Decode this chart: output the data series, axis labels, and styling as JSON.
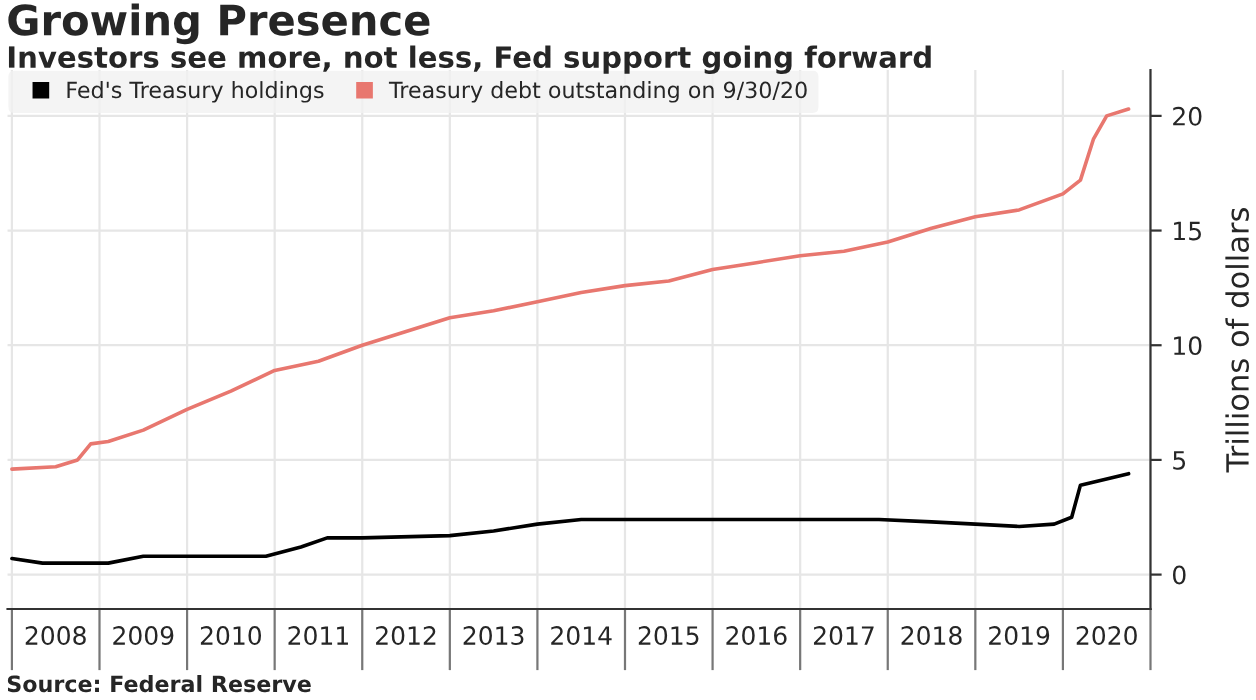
{
  "chart_data": {
    "type": "line",
    "title": "Growing Presence",
    "subtitle": "Investors see more, not less, Fed support going forward",
    "ylabel": "Trillions of dollars",
    "annotations": [
      "Source: Federal Reserve"
    ],
    "series": [
      {
        "name": "Fed's Treasury holdings",
        "color": "#000000",
        "x": [
          2008.0,
          2008.35,
          2009.1,
          2009.5,
          2010.0,
          2010.9,
          2011.3,
          2011.6,
          2012.0,
          2013.0,
          2013.5,
          2014.0,
          2014.5,
          2017.9,
          2018.5,
          2019.0,
          2019.5,
          2019.9,
          2020.1,
          2020.2,
          2020.75
        ],
        "values": [
          0.7,
          0.5,
          0.5,
          0.8,
          0.8,
          0.8,
          1.2,
          1.6,
          1.6,
          1.7,
          1.9,
          2.2,
          2.4,
          2.4,
          2.3,
          2.2,
          2.1,
          2.2,
          2.5,
          3.9,
          4.4
        ]
      },
      {
        "name": "Treasury debt outstanding on 9/30/20",
        "color": "#e8776f",
        "x": [
          2008.0,
          2008.5,
          2008.75,
          2008.9,
          2009.1,
          2009.5,
          2010.0,
          2010.5,
          2011.0,
          2011.5,
          2012.0,
          2012.5,
          2013.0,
          2013.5,
          2014.0,
          2014.5,
          2015.0,
          2015.5,
          2016.0,
          2016.5,
          2017.0,
          2017.5,
          2018.0,
          2018.5,
          2019.0,
          2019.5,
          2020.0,
          2020.2,
          2020.35,
          2020.5,
          2020.75
        ],
        "values": [
          4.6,
          4.7,
          5.0,
          5.7,
          5.8,
          6.3,
          7.2,
          8.0,
          8.9,
          9.3,
          10.0,
          10.6,
          11.2,
          11.5,
          11.9,
          12.3,
          12.6,
          12.8,
          13.3,
          13.6,
          13.9,
          14.1,
          14.5,
          15.1,
          15.6,
          15.9,
          16.6,
          17.2,
          19.0,
          20.0,
          20.3
        ]
      }
    ],
    "xlim": [
      2007.95,
      2021.0
    ],
    "xticks": [
      {
        "value": 2008,
        "label": null
      },
      {
        "value": 2008.5,
        "label": "2008"
      },
      {
        "value": 2009,
        "label": null
      },
      {
        "value": 2009.5,
        "label": "2009"
      },
      {
        "value": 2010,
        "label": null
      },
      {
        "value": 2010.5,
        "label": "2010"
      },
      {
        "value": 2011,
        "label": null
      },
      {
        "value": 2011.5,
        "label": "2011"
      },
      {
        "value": 2012,
        "label": null
      },
      {
        "value": 2012.5,
        "label": "2012"
      },
      {
        "value": 2013,
        "label": null
      },
      {
        "value": 2013.5,
        "label": "2013"
      },
      {
        "value": 2014,
        "label": null
      },
      {
        "value": 2014.5,
        "label": "2014"
      },
      {
        "value": 2015,
        "label": null
      },
      {
        "value": 2015.5,
        "label": "2015"
      },
      {
        "value": 2016,
        "label": null
      },
      {
        "value": 2016.5,
        "label": "2016"
      },
      {
        "value": 2017,
        "label": null
      },
      {
        "value": 2017.5,
        "label": "2017"
      },
      {
        "value": 2018,
        "label": null
      },
      {
        "value": 2018.5,
        "label": "2018"
      },
      {
        "value": 2019,
        "label": null
      },
      {
        "value": 2019.5,
        "label": "2019"
      },
      {
        "value": 2020,
        "label": null
      },
      {
        "value": 2020.5,
        "label": "2020"
      },
      {
        "value": 2021,
        "label": null
      }
    ],
    "ylim": [
      -1.5,
      22
    ],
    "yticks": [
      0,
      5,
      10,
      15,
      20
    ],
    "grid": true,
    "legend": "top left",
    "marker": "none",
    "line_style": "solid"
  }
}
